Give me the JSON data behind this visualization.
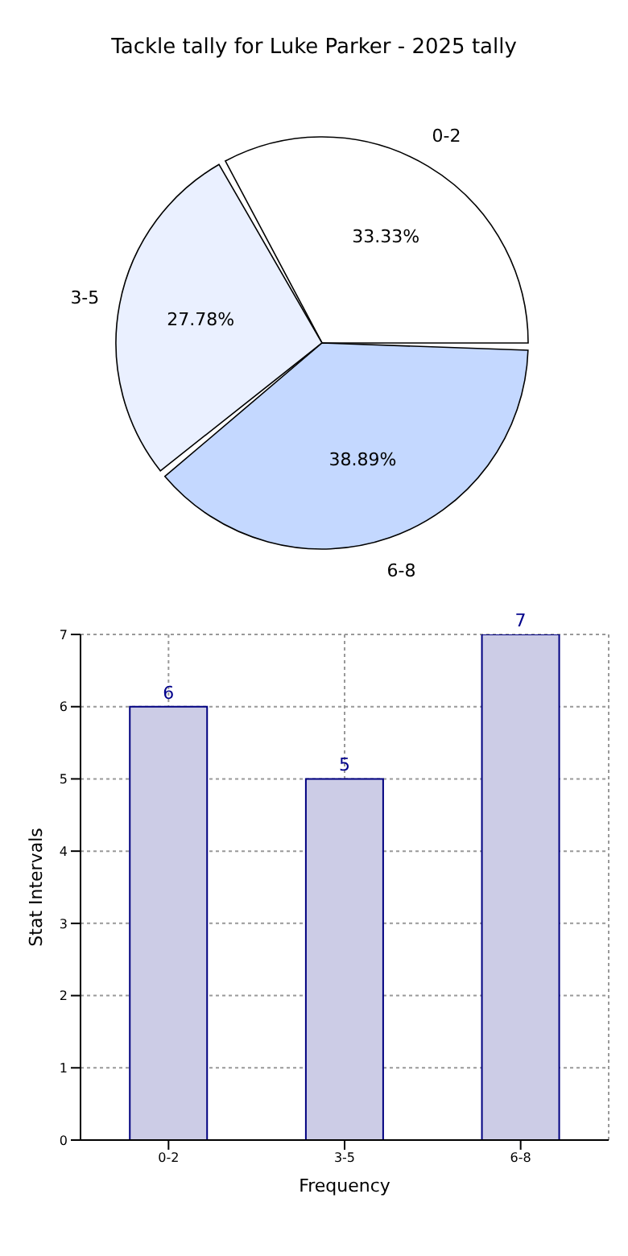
{
  "chart_data": [
    {
      "type": "pie",
      "title": "Tackle tally for Luke Parker - 2025 tally",
      "categories": [
        "0-2",
        "3-5",
        "6-8"
      ],
      "values": [
        33.33,
        27.78,
        38.89
      ],
      "colors": [
        "#ffffff",
        "#eaf0ff",
        "#c4d8ff"
      ],
      "value_labels": [
        "33.33%",
        "27.78%",
        "38.89%"
      ]
    },
    {
      "type": "bar",
      "categories": [
        "0-2",
        "3-5",
        "6-8"
      ],
      "values": [
        6,
        5,
        7
      ],
      "color": "#ccccE6",
      "xlabel": "Frequency",
      "ylabel": "Stat Intervals",
      "ylim": [
        0,
        7
      ],
      "yticks": [
        0,
        1,
        2,
        3,
        4,
        5,
        6,
        7
      ],
      "grid": true,
      "data_labels": true
    }
  ]
}
